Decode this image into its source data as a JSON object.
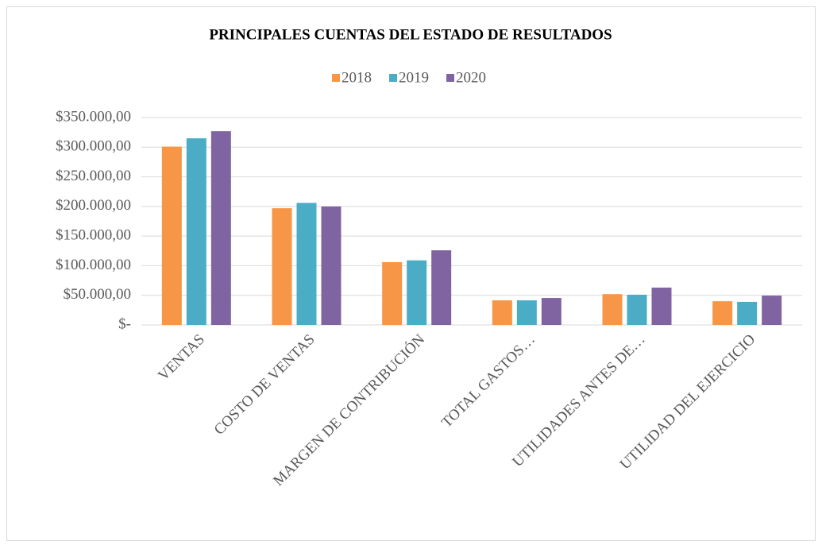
{
  "chart_data": {
    "type": "bar",
    "title": "PRINCIPALES CUENTAS DEL ESTADO DE RESULTADOS",
    "categories": [
      "VENTAS",
      "COSTO DE VENTAS",
      "MARGEN DE CONTRIBUCIÓN",
      "TOTAL GASTOS…",
      "UTILIDADES ANTES DE…",
      "UTILIDAD DEL EJERCICIO"
    ],
    "series": [
      {
        "name": "2018",
        "color": "#f79646",
        "values": [
          301000,
          197000,
          106000,
          41500,
          52000,
          40000
        ]
      },
      {
        "name": "2019",
        "color": "#4bacc6",
        "values": [
          315000,
          206000,
          109000,
          41500,
          51000,
          39000
        ]
      },
      {
        "name": "2020",
        "color": "#8064a2",
        "values": [
          327000,
          200000,
          126000,
          45500,
          63000,
          49500
        ]
      }
    ],
    "ylim": [
      0,
      350000
    ],
    "yticks": [
      {
        "value": 0,
        "label": "$-"
      },
      {
        "value": 50000,
        "label": "$50.000,00"
      },
      {
        "value": 100000,
        "label": "$100.000,00"
      },
      {
        "value": 150000,
        "label": "$150.000,00"
      },
      {
        "value": 200000,
        "label": "$200.000,00"
      },
      {
        "value": 250000,
        "label": "$250.000,00"
      },
      {
        "value": 300000,
        "label": "$300.000,00"
      },
      {
        "value": 350000,
        "label": "$350.000,00"
      }
    ],
    "grid": true,
    "legend": "top"
  }
}
